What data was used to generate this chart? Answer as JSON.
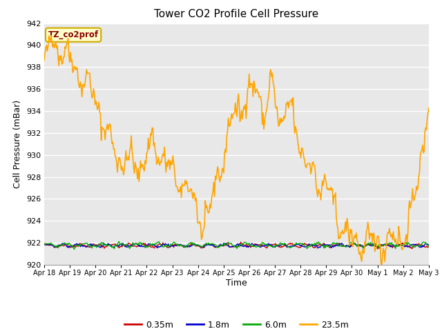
{
  "title": "Tower CO2 Profile Cell Pressure",
  "xlabel": "Time",
  "ylabel": "Cell Pressure (mBar)",
  "ylim": [
    920,
    942
  ],
  "yticks": [
    920,
    922,
    924,
    926,
    928,
    930,
    932,
    934,
    936,
    938,
    940,
    942
  ],
  "bg_color": "#e8e8e8",
  "grid_color": "white",
  "series": [
    {
      "label": "0.35m",
      "color": "#cc0000",
      "lw": 1.0
    },
    {
      "label": "1.8m",
      "color": "#0000cc",
      "lw": 1.0
    },
    {
      "label": "6.0m",
      "color": "#00aa00",
      "lw": 1.0
    },
    {
      "label": "23.5m",
      "color": "#ffa500",
      "lw": 1.2
    }
  ],
  "n_points": 500,
  "xtick_labels": [
    "Apr 18",
    "Apr 19",
    "Apr 20",
    "Apr 21",
    "Apr 22",
    "Apr 23",
    "Apr 24",
    "Apr 25",
    "Apr 26",
    "Apr 27",
    "Apr 28",
    "Apr 29",
    "Apr 30",
    "May 1",
    "May 2",
    "May 3"
  ],
  "annotation_text": "TZ_co2prof",
  "annotation_color": "#8b0000",
  "annotation_bg": "#ffffcc",
  "annotation_border": "#ccaa00"
}
